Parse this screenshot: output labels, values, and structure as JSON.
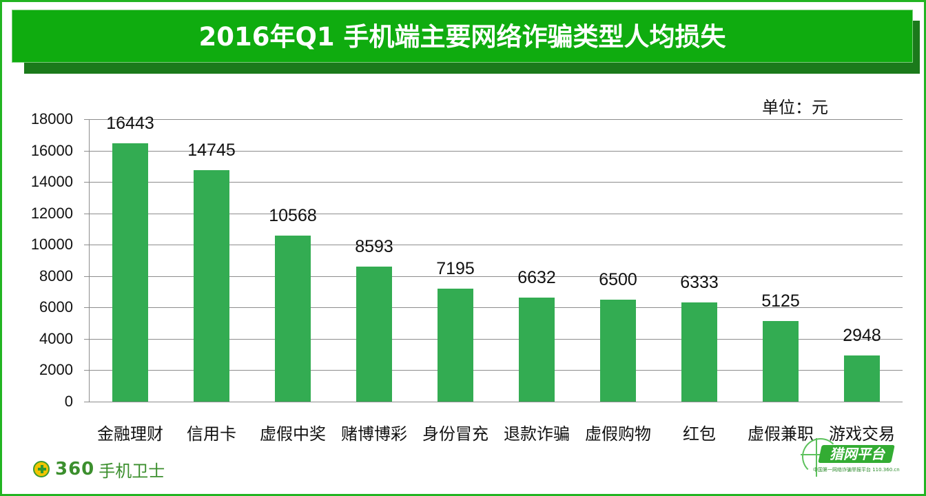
{
  "title": "2016年Q1 手机端主要网络诈骗类型人均损失",
  "unit_label": "单位：元",
  "colors": {
    "frame_border": "#22b422",
    "title_bg": "#0fac0f",
    "title_shadow": "#1b7a1b",
    "bar": "#33ac52",
    "gridline": "#8c8c8c"
  },
  "y_axis": {
    "ticks": [
      "18000",
      "16000",
      "14000",
      "12000",
      "10000",
      "8000",
      "6000",
      "4000",
      "2000",
      "0"
    ]
  },
  "categories": [
    "金融理财",
    "信用卡",
    "虚假中奖",
    "赌博博彩",
    "身份冒充",
    "退款诈骗",
    "虚假购物",
    "红包",
    "虚假兼职",
    "游戏交易"
  ],
  "value_labels": [
    "16443",
    "14745",
    "10568",
    "8593",
    "7195",
    "6632",
    "6500",
    "6333",
    "5125",
    "2948"
  ],
  "footer": {
    "brand_number": "360",
    "brand_name": "手机卫士",
    "partner_logo": "猎网平台",
    "partner_sub": "中国第一网络诈骗举报平台 110.360.cn"
  },
  "chart_data": {
    "type": "bar",
    "title": "2016年Q1 手机端主要网络诈骗类型人均损失",
    "subtitle": "单位：元",
    "categories": [
      "金融理财",
      "信用卡",
      "虚假中奖",
      "赌博博彩",
      "身份冒充",
      "退款诈骗",
      "虚假购物",
      "红包",
      "虚假兼职",
      "游戏交易"
    ],
    "values": [
      16443,
      14745,
      10568,
      8593,
      7195,
      6632,
      6500,
      6333,
      5125,
      2948
    ],
    "xlabel": "",
    "ylabel": "",
    "ylim": [
      0,
      18000
    ],
    "yticks": [
      0,
      2000,
      4000,
      6000,
      8000,
      10000,
      12000,
      14000,
      16000,
      18000
    ],
    "grid": true,
    "legend": "none",
    "data_labels": true
  }
}
